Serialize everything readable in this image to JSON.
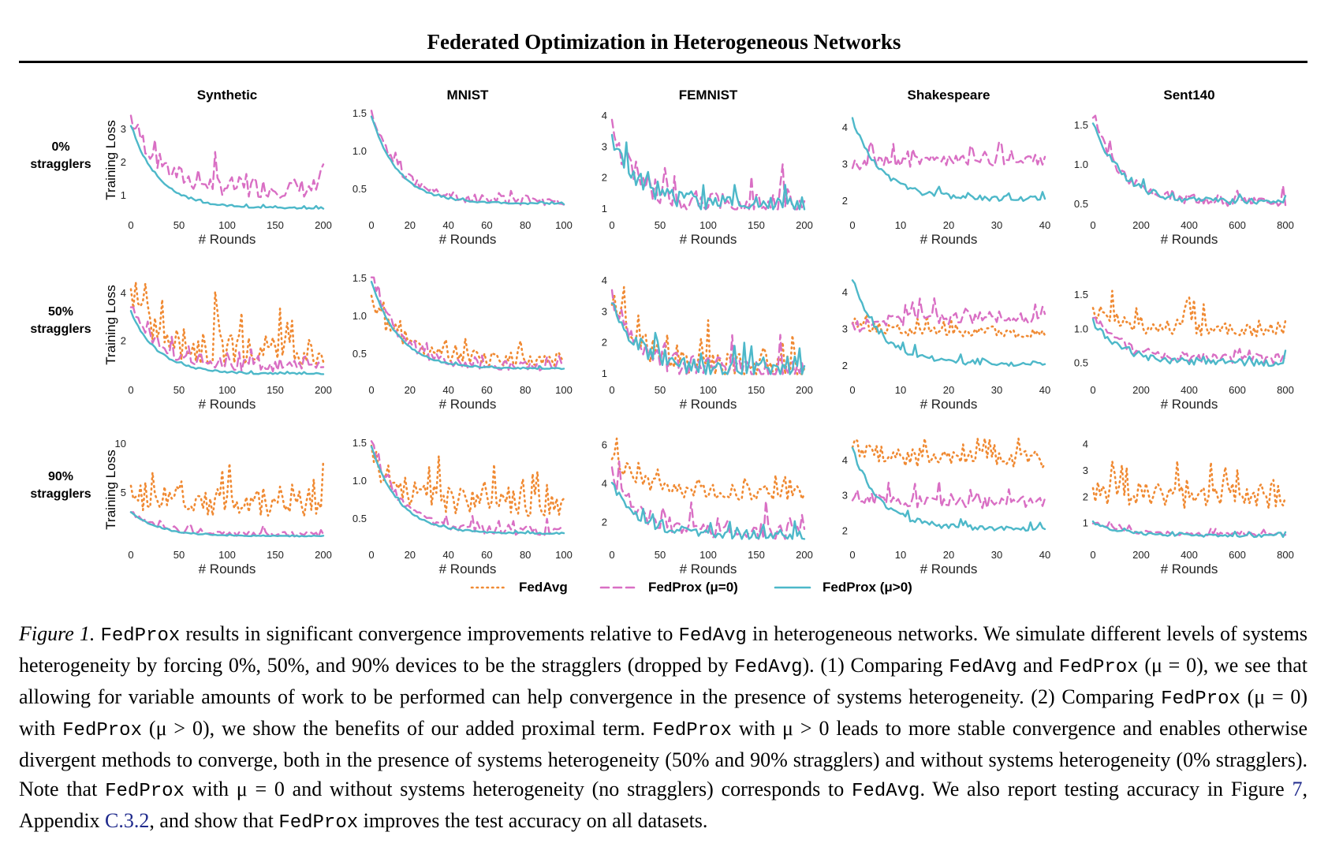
{
  "header": {
    "title": "Federated Optimization in Heterogeneous Networks"
  },
  "colors": {
    "fedavg": "#f08a33",
    "fedprox0": "#d96fc4",
    "fedprox": "#4db8c9"
  },
  "figure": {
    "column_titles": [
      "Synthetic",
      "MNIST",
      "FEMNIST",
      "Shakespeare",
      "Sent140"
    ],
    "row_labels": [
      [
        "0%",
        "stragglers"
      ],
      [
        "50%",
        "stragglers"
      ],
      [
        "90%",
        "stragglers"
      ]
    ],
    "ylabel": "Training Loss",
    "xlabel": "# Rounds",
    "legend": [
      "FedAvg",
      "FedProx (μ=0)",
      "FedProx (μ>0)"
    ]
  },
  "chart_data": [
    {
      "type": "line",
      "dataset": "Synthetic",
      "row": "0% stragglers",
      "x_range": [
        0,
        200
      ],
      "y_range": [
        0.5,
        3.6
      ],
      "x_ticks": [
        "0",
        "50",
        "100",
        "150",
        "200"
      ],
      "y_ticks": [
        [
          1,
          "1"
        ],
        [
          2,
          "2"
        ],
        [
          3,
          "3"
        ]
      ],
      "series": [
        {
          "name": "FedProx (μ=0)",
          "start": 3.4,
          "end": 1.2,
          "noise": 0.6
        },
        {
          "name": "FedProx (μ>0)",
          "start": 3.1,
          "end": 0.6,
          "noise": 0.05
        }
      ]
    },
    {
      "type": "line",
      "dataset": "MNIST",
      "row": "0% stragglers",
      "x_range": [
        0,
        100
      ],
      "y_range": [
        0.2,
        1.55
      ],
      "x_ticks": [
        "0",
        "20",
        "40",
        "60",
        "80",
        "100"
      ],
      "y_ticks": [
        [
          0.5,
          "0.5"
        ],
        [
          1.0,
          "1.0"
        ],
        [
          1.5,
          "1.5"
        ]
      ],
      "series": [
        {
          "name": "FedProx (μ=0)",
          "start": 1.5,
          "end": 0.34,
          "noise": 0.12
        },
        {
          "name": "FedProx (μ>0)",
          "start": 1.45,
          "end": 0.3,
          "noise": 0.02
        }
      ]
    },
    {
      "type": "line",
      "dataset": "FEMNIST",
      "row": "0% stragglers",
      "x_range": [
        0,
        200
      ],
      "y_range": [
        0.9,
        4.2
      ],
      "x_ticks": [
        "0",
        "50",
        "100",
        "150",
        "200"
      ],
      "y_ticks": [
        [
          1,
          "1"
        ],
        [
          2,
          "2"
        ],
        [
          3,
          "3"
        ],
        [
          4,
          "4"
        ]
      ],
      "series": [
        {
          "name": "FedProx (μ=0)",
          "start": 3.5,
          "end": 1.1,
          "noise": 0.8
        },
        {
          "name": "FedProx (μ>0)",
          "start": 3.3,
          "end": 1.1,
          "noise": 0.55
        }
      ]
    },
    {
      "type": "line",
      "dataset": "Shakespeare",
      "row": "0% stragglers",
      "x_range": [
        0,
        40
      ],
      "y_range": [
        1.7,
        4.5
      ],
      "x_ticks": [
        "0",
        "10",
        "20",
        "30",
        "40"
      ],
      "y_ticks": [
        [
          2,
          "2"
        ],
        [
          3,
          "3"
        ],
        [
          4,
          "4"
        ]
      ],
      "series": [
        {
          "name": "FedProx (μ=0)",
          "start": 3.0,
          "end": 3.1,
          "noise": 0.35
        },
        {
          "name": "FedProx (μ>0)",
          "start": 4.2,
          "end": 2.05,
          "noise": 0.15
        }
      ]
    },
    {
      "type": "line",
      "dataset": "Sent140",
      "row": "0% stragglers",
      "x_range": [
        0,
        800
      ],
      "y_range": [
        0.4,
        1.7
      ],
      "x_ticks": [
        "0",
        "200",
        "400",
        "600",
        "800"
      ],
      "y_ticks": [
        [
          0.5,
          "0.5"
        ],
        [
          1.0,
          "1.0"
        ],
        [
          1.5,
          "1.5"
        ]
      ],
      "series": [
        {
          "name": "FedProx (μ=0)",
          "start": 1.6,
          "end": 0.52,
          "noise": 0.12
        },
        {
          "name": "FedProx (μ>0)",
          "start": 1.55,
          "end": 0.52,
          "noise": 0.08
        }
      ]
    },
    {
      "type": "line",
      "dataset": "Synthetic",
      "row": "50% stragglers",
      "x_range": [
        0,
        200
      ],
      "y_range": [
        0.5,
        4.8
      ],
      "x_ticks": [
        "0",
        "50",
        "100",
        "150",
        "200"
      ],
      "y_ticks": [
        [
          2,
          "2"
        ],
        [
          4,
          "4"
        ]
      ],
      "series": [
        {
          "name": "FedAvg",
          "start": 4.0,
          "end": 1.5,
          "noise": 1.4
        },
        {
          "name": "FedProx (μ=0)",
          "start": 3.5,
          "end": 0.9,
          "noise": 0.5
        },
        {
          "name": "FedProx (μ>0)",
          "start": 3.2,
          "end": 0.6,
          "noise": 0.08
        }
      ]
    },
    {
      "type": "line",
      "dataset": "MNIST",
      "row": "50% stragglers",
      "x_range": [
        0,
        100
      ],
      "y_range": [
        0.2,
        1.55
      ],
      "x_ticks": [
        "0",
        "20",
        "40",
        "60",
        "80",
        "100"
      ],
      "y_ticks": [
        [
          0.5,
          "0.5"
        ],
        [
          1.0,
          "1.0"
        ],
        [
          1.5,
          "1.5"
        ]
      ],
      "series": [
        {
          "name": "FedAvg",
          "start": 1.2,
          "end": 0.42,
          "noise": 0.18
        },
        {
          "name": "FedProx (μ=0)",
          "start": 1.5,
          "end": 0.33,
          "noise": 0.12
        },
        {
          "name": "FedProx (μ>0)",
          "start": 1.45,
          "end": 0.3,
          "noise": 0.02
        }
      ]
    },
    {
      "type": "line",
      "dataset": "FEMNIST",
      "row": "50% stragglers",
      "x_range": [
        0,
        200
      ],
      "y_range": [
        0.9,
        4.2
      ],
      "x_ticks": [
        "0",
        "50",
        "100",
        "150",
        "200"
      ],
      "y_ticks": [
        [
          1,
          "1"
        ],
        [
          2,
          "2"
        ],
        [
          3,
          "3"
        ],
        [
          4,
          "4"
        ]
      ],
      "series": [
        {
          "name": "FedAvg",
          "start": 3.6,
          "end": 1.2,
          "noise": 0.9
        },
        {
          "name": "FedProx (μ=0)",
          "start": 3.5,
          "end": 1.1,
          "noise": 0.75
        },
        {
          "name": "FedProx (μ>0)",
          "start": 3.3,
          "end": 1.1,
          "noise": 0.55
        }
      ]
    },
    {
      "type": "line",
      "dataset": "Shakespeare",
      "row": "50% stragglers",
      "x_range": [
        0,
        40
      ],
      "y_range": [
        1.7,
        4.5
      ],
      "x_ticks": [
        "0",
        "10",
        "20",
        "30",
        "40"
      ],
      "y_ticks": [
        [
          2,
          "2"
        ],
        [
          3,
          "3"
        ],
        [
          4,
          "4"
        ]
      ],
      "series": [
        {
          "name": "FedAvg",
          "start": 3.2,
          "end": 2.9,
          "noise": 0.3
        },
        {
          "name": "FedProx (μ=0)",
          "start": 3.0,
          "end": 3.3,
          "noise": 0.35
        },
        {
          "name": "FedProx (μ>0)",
          "start": 4.3,
          "end": 2.05,
          "noise": 0.15
        }
      ]
    },
    {
      "type": "line",
      "dataset": "Sent140",
      "row": "50% stragglers",
      "x_range": [
        0,
        800
      ],
      "y_range": [
        0.3,
        1.8
      ],
      "x_ticks": [
        "0",
        "200",
        "400",
        "600",
        "800"
      ],
      "y_ticks": [
        [
          0.5,
          "0.5"
        ],
        [
          1.0,
          "1.0"
        ],
        [
          1.5,
          "1.5"
        ]
      ],
      "series": [
        {
          "name": "FedAvg",
          "start": 1.3,
          "end": 1.0,
          "noise": 0.25
        },
        {
          "name": "FedProx (μ=0)",
          "start": 1.2,
          "end": 0.55,
          "noise": 0.15
        },
        {
          "name": "FedProx (μ>0)",
          "start": 1.1,
          "end": 0.5,
          "noise": 0.1
        }
      ]
    },
    {
      "type": "line",
      "dataset": "Synthetic",
      "row": "90% stragglers",
      "x_range": [
        0,
        200
      ],
      "y_range": [
        0,
        10.5
      ],
      "x_ticks": [
        "0",
        "50",
        "100",
        "150",
        "200"
      ],
      "y_ticks": [
        [
          5,
          "5"
        ],
        [
          10,
          "10"
        ]
      ],
      "series": [
        {
          "name": "FedAvg",
          "start": 5.0,
          "end": 4.0,
          "noise": 3.0
        },
        {
          "name": "FedProx (μ=0)",
          "start": 3.0,
          "end": 0.7,
          "noise": 0.5
        },
        {
          "name": "FedProx (μ>0)",
          "start": 3.0,
          "end": 0.5,
          "noise": 0.1
        }
      ]
    },
    {
      "type": "line",
      "dataset": "MNIST",
      "row": "90% stragglers",
      "x_range": [
        0,
        100
      ],
      "y_range": [
        0.2,
        1.55
      ],
      "x_ticks": [
        "0",
        "20",
        "40",
        "60",
        "80",
        "100"
      ],
      "y_ticks": [
        [
          0.5,
          "0.5"
        ],
        [
          1.0,
          "1.0"
        ],
        [
          1.5,
          "1.5"
        ]
      ],
      "series": [
        {
          "name": "FedAvg",
          "start": 1.3,
          "end": 0.7,
          "noise": 0.35
        },
        {
          "name": "FedProx (μ=0)",
          "start": 1.5,
          "end": 0.33,
          "noise": 0.12
        },
        {
          "name": "FedProx (μ>0)",
          "start": 1.45,
          "end": 0.3,
          "noise": 0.02
        }
      ]
    },
    {
      "type": "line",
      "dataset": "FEMNIST",
      "row": "90% stragglers",
      "x_range": [
        0,
        200
      ],
      "y_range": [
        1,
        6.3
      ],
      "x_ticks": [
        "0",
        "50",
        "100",
        "150",
        "200"
      ],
      "y_ticks": [
        [
          2,
          "2"
        ],
        [
          4,
          "4"
        ],
        [
          6,
          "6"
        ]
      ],
      "series": [
        {
          "name": "FedAvg",
          "start": 5.5,
          "end": 3.5,
          "noise": 0.8
        },
        {
          "name": "FedProx (μ=0)",
          "start": 4.5,
          "end": 1.5,
          "noise": 0.9
        },
        {
          "name": "FedProx (μ>0)",
          "start": 4.0,
          "end": 1.3,
          "noise": 0.5
        }
      ]
    },
    {
      "type": "line",
      "dataset": "Shakespeare",
      "row": "90% stragglers",
      "x_range": [
        0,
        40
      ],
      "y_range": [
        1.7,
        4.6
      ],
      "x_ticks": [
        "0",
        "10",
        "20",
        "30",
        "40"
      ],
      "y_ticks": [
        [
          2,
          "2"
        ],
        [
          3,
          "3"
        ],
        [
          4,
          "4"
        ]
      ],
      "series": [
        {
          "name": "FedAvg",
          "start": 4.4,
          "end": 4.0,
          "noise": 0.5
        },
        {
          "name": "FedProx (μ=0)",
          "start": 3.0,
          "end": 2.8,
          "noise": 0.35
        },
        {
          "name": "FedProx (μ>0)",
          "start": 4.3,
          "end": 2.05,
          "noise": 0.15
        }
      ]
    },
    {
      "type": "line",
      "dataset": "Sent140",
      "row": "90% stragglers",
      "x_range": [
        0,
        800
      ],
      "y_range": [
        0.3,
        4.2
      ],
      "x_ticks": [
        "0",
        "200",
        "400",
        "600",
        "800"
      ],
      "y_ticks": [
        [
          1,
          "1"
        ],
        [
          2,
          "2"
        ],
        [
          3,
          "3"
        ],
        [
          4,
          "4"
        ]
      ],
      "series": [
        {
          "name": "FedAvg",
          "start": 2.2,
          "end": 2.0,
          "noise": 1.0
        },
        {
          "name": "FedProx (μ=0)",
          "start": 1.0,
          "end": 0.55,
          "noise": 0.15
        },
        {
          "name": "FedProx (μ>0)",
          "start": 1.0,
          "end": 0.5,
          "noise": 0.1
        }
      ]
    }
  ],
  "caption": {
    "label": "Figure 1.",
    "fedprox": "FedProx",
    "fedavg": "FedAvg",
    "t1": " results in significant convergence improvements relative to ",
    "t2": " in heterogeneous networks.  We simulate different levels of systems heterogeneity by forcing 0%, 50%, and 90% devices to be the stragglers (dropped by ",
    "t3": "). (1) Comparing ",
    "t4": " and ",
    "t5": " (μ = 0), we see that allowing for variable amounts of work to be performed can help convergence in the presence of systems heterogeneity. (2) Comparing ",
    "t6": " (μ = 0) with ",
    "t7": " (μ > 0), we show the benefits of our added proximal term. ",
    "t8": " with μ > 0 leads to more stable convergence and enables otherwise divergent methods to converge, both in the presence of systems heterogeneity (50% and 90% stragglers) and without systems heterogeneity (0% stragglers). Note that ",
    "t9": " with μ = 0 and without systems heterogeneity (no stragglers) corresponds to ",
    "t10": ". We also report testing accuracy in Figure ",
    "ref1": "7",
    "t11": ", Appendix ",
    "ref2": "C.3.2",
    "t12": ", and show that ",
    "t13": " improves the test accuracy on all datasets."
  }
}
